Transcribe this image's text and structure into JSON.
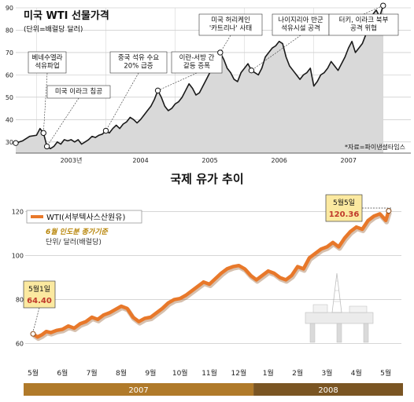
{
  "top_chart": {
    "title": "미국  WTI  선물가격",
    "unit": "(단위=배럴당 달러)",
    "source": "*자료=파이낸셜타임스",
    "colors": {
      "fill": "#d9d9d9",
      "line": "#1a1a1a",
      "grid": "#bdbdbd"
    },
    "annotations": [
      {
        "text": "베네수엘라\n석유파업"
      },
      {
        "text": "미국 이라크 침공"
      },
      {
        "text": "중국 석유 수요\n20% 급증"
      },
      {
        "text": "이란-서방 간\n갈등 증폭"
      },
      {
        "text": "미국 허리케인\n'카트리나' 사태"
      },
      {
        "text": "나이지리아 반군\n석유시설 공격"
      },
      {
        "text": "터키, 이라크 북부\n공격 위협"
      }
    ]
  },
  "bottom_chart": {
    "title": "국제 유가 추이",
    "legend_label": "WTI(서부텍사스산원유)",
    "note": "6월 인도분 종가기준",
    "unit": "단위/ 달러(배럴당)",
    "start_callout": {
      "date": "5월1일",
      "value": "64.40"
    },
    "end_callout": {
      "date": "5월5일",
      "value": "120.36"
    },
    "colors": {
      "line": "#e8782a",
      "year2007": "#b07a2a",
      "year2008": "#7a5523",
      "value": "#c0392b",
      "callout_bg": "#fbe9a0"
    },
    "year_bar": [
      "2007",
      "2008"
    ]
  },
  "chart_data": [
    {
      "type": "area",
      "title": "미국  WTI  선물가격",
      "ylabel": "(단위=배럴당 달러)",
      "ylim": [
        25,
        90
      ],
      "yticks": [
        30,
        40,
        50,
        60,
        70,
        80,
        90
      ],
      "xlim": [
        2002.7,
        2008.4
      ],
      "xticks": [
        "2003년",
        "2004",
        "2005",
        "2006",
        "2007"
      ],
      "grid": true,
      "series": [
        {
          "x": [
            2002.7,
            2002.8,
            2002.9,
            2003.0,
            2003.05,
            2003.1,
            2003.15,
            2003.2,
            2003.25,
            2003.3,
            2003.35,
            2003.4,
            2003.45,
            2003.5,
            2003.55,
            2003.6,
            2003.65,
            2003.7,
            2003.75,
            2003.8,
            2003.85,
            2003.9,
            2003.95,
            2004.0,
            2004.05,
            2004.1,
            2004.15,
            2004.2,
            2004.25,
            2004.3,
            2004.35,
            2004.4,
            2004.45,
            2004.5,
            2004.55,
            2004.6,
            2004.65,
            2004.7,
            2004.75,
            2004.8,
            2004.85,
            2004.9,
            2004.95,
            2005.0,
            2005.05,
            2005.1,
            2005.15,
            2005.2,
            2005.25,
            2005.3,
            2005.35,
            2005.4,
            2005.45,
            2005.5,
            2005.55,
            2005.6,
            2005.65,
            2005.7,
            2005.75,
            2005.8,
            2005.85,
            2005.9,
            2005.95,
            2006.0,
            2006.05,
            2006.1,
            2006.15,
            2006.2,
            2006.25,
            2006.3,
            2006.35,
            2006.4,
            2006.45,
            2006.5,
            2006.55,
            2006.6,
            2006.65,
            2006.7,
            2006.75,
            2006.8,
            2006.85,
            2006.9,
            2006.95,
            2007.0,
            2007.05,
            2007.1,
            2007.15,
            2007.2,
            2007.25,
            2007.3,
            2007.35,
            2007.4,
            2007.45,
            2007.5,
            2007.55,
            2007.6,
            2007.65,
            2007.7,
            2007.75,
            2007.8,
            2007.85,
            2007.9,
            2007.95,
            2008.0
          ],
          "y": [
            29.5,
            30.5,
            32.5,
            33,
            36,
            34,
            28,
            27,
            28,
            30,
            29,
            31,
            30.5,
            31,
            30,
            31,
            29,
            30,
            31,
            32.5,
            32,
            33,
            33.5,
            35,
            34,
            36,
            37.5,
            36,
            38,
            39,
            41,
            40,
            38.5,
            40,
            42,
            44,
            46,
            49,
            53,
            50,
            46,
            44,
            45,
            47,
            48,
            50,
            53,
            56,
            54,
            51,
            52,
            55,
            58,
            61,
            63,
            66,
            70,
            67,
            63,
            61,
            58,
            57,
            61,
            63,
            65,
            62,
            61,
            60,
            63,
            68,
            70,
            72,
            73,
            75,
            74,
            68,
            64,
            62,
            60,
            58,
            60,
            61,
            63,
            55,
            57,
            60,
            61,
            63,
            66,
            64,
            62,
            65,
            68,
            72,
            75,
            70,
            72,
            74,
            78,
            82,
            87,
            89,
            86,
            91
          ]
        }
      ]
    },
    {
      "type": "line",
      "title": "국제 유가 추이",
      "ylabel": "단위/ 달러(배럴당)",
      "ylim": [
        57,
        127
      ],
      "yticks": [
        60,
        80,
        100,
        120
      ],
      "categories": [
        "5월",
        "6월",
        "7월",
        "8월",
        "9월",
        "10월",
        "11월",
        "12월",
        "1월",
        "2월",
        "3월",
        "4월",
        "5월"
      ],
      "grid": true,
      "legend": "top-left",
      "series": [
        {
          "name": "WTI(서부텍사스산원유)",
          "x": [
            0.0,
            0.15,
            0.3,
            0.45,
            0.6,
            0.8,
            1.0,
            1.2,
            1.4,
            1.6,
            1.8,
            2.0,
            2.2,
            2.4,
            2.6,
            2.8,
            3.0,
            3.2,
            3.4,
            3.6,
            3.8,
            4.0,
            4.2,
            4.4,
            4.6,
            4.8,
            5.0,
            5.2,
            5.4,
            5.6,
            5.8,
            6.0,
            6.2,
            6.4,
            6.6,
            6.8,
            7.0,
            7.2,
            7.4,
            7.6,
            7.8,
            8.0,
            8.2,
            8.4,
            8.6,
            8.8,
            9.0,
            9.2,
            9.4,
            9.6,
            9.8,
            10.0,
            10.2,
            10.4,
            10.6,
            10.8,
            11.0,
            11.2,
            11.4,
            11.6,
            11.8,
            12.0,
            12.1
          ],
          "y": [
            64.4,
            63,
            64,
            65.5,
            65,
            66,
            66.5,
            68,
            67,
            69,
            70,
            72,
            71,
            73,
            74,
            75.5,
            77,
            76,
            72,
            70,
            71.5,
            72,
            74,
            76,
            78.5,
            80,
            80.5,
            82,
            84,
            86,
            88,
            87,
            89.5,
            92,
            94,
            95,
            95.5,
            94,
            91,
            89,
            91,
            93,
            92,
            90,
            89,
            91,
            95,
            94,
            99,
            101,
            103,
            104,
            106,
            104,
            108,
            111,
            113,
            112,
            116,
            118,
            119,
            116,
            120.36
          ]
        }
      ]
    }
  ]
}
